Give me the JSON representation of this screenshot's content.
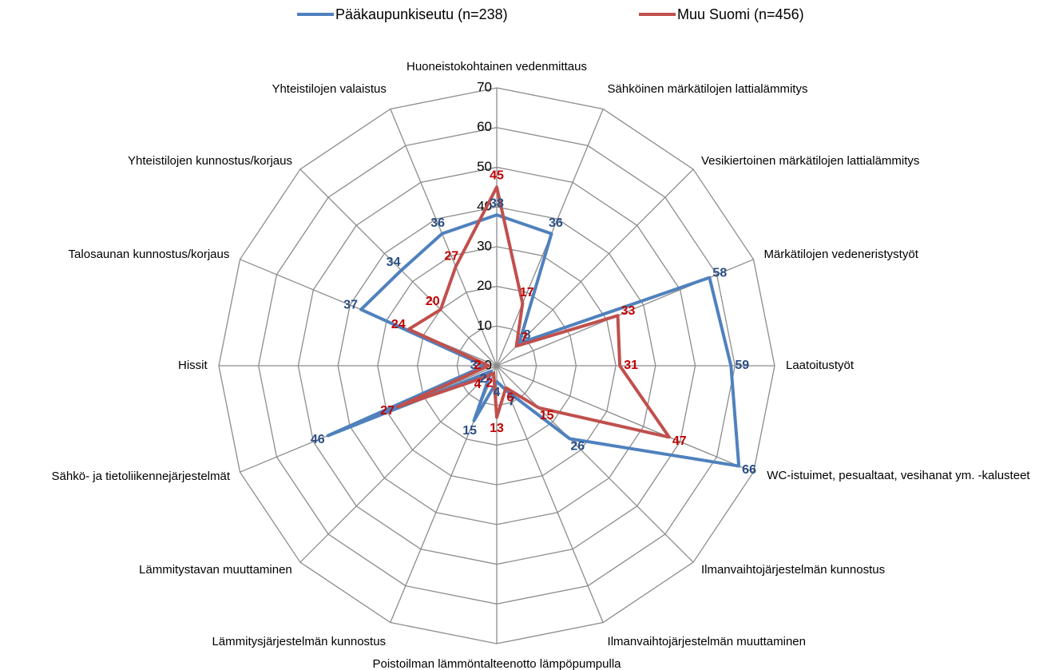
{
  "chart_data": {
    "type": "radar",
    "categories": [
      "Huoneistokohtainen vedenmittaus",
      "Sähköinen märkätilojen lattialämmitys",
      "Vesikiertoinen märkätilojen lattialämmitys",
      "Märkätilojen vedeneristystyöt",
      "Laatoitustyöt",
      "WC-istuimet, pesualtaat, vesihanat ym. -kalusteet",
      "Ilmanvaihtojärjestelmän kunnostus",
      "Ilmanvaihtojärjestelmän muuttaminen",
      "Poistoilman lämmöntalteenotto lämpöpumpulla",
      "Lämmitysjärjestelmän kunnostus",
      "Lämmitystavan muuttaminen",
      "Sähkö- ja tietoliikennejärjestelmät",
      "Hissit",
      "Talosaunan kunnostus/korjaus",
      "Yhteistilojen kunnostus/korjaus",
      "Yhteistilojen valaistus"
    ],
    "series": [
      {
        "name": "Pääkaupunkiseutu (n=238)",
        "color": "#4f81bd",
        "label_color": "#2a4e86",
        "values": [
          38,
          36,
          8,
          58,
          59,
          66,
          26,
          7,
          4,
          15,
          2,
          46,
          3,
          37,
          34,
          36
        ]
      },
      {
        "name": "Muu Suomi (n=456)",
        "color": "#c0504d",
        "label_color": "#c00000",
        "values": [
          45,
          17,
          7,
          33,
          31,
          47,
          15,
          6,
          13,
          2,
          4,
          27,
          2,
          24,
          20,
          27
        ]
      }
    ],
    "ylim": [
      0,
      70
    ],
    "yticks": [
      0,
      10,
      20,
      30,
      40,
      50,
      60,
      70
    ],
    "grid": true,
    "legend": "top"
  }
}
